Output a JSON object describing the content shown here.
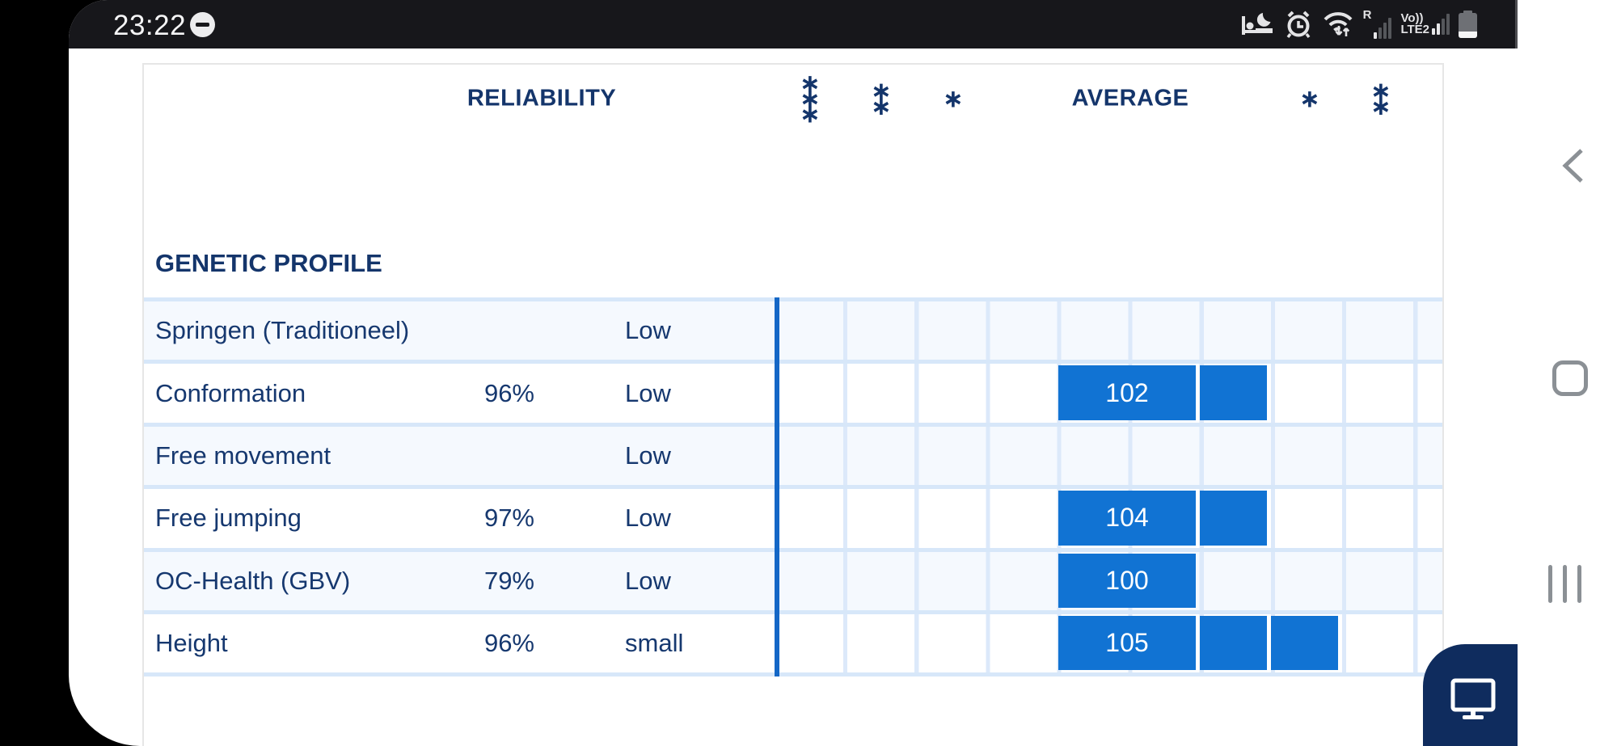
{
  "status_bar": {
    "time": "23:22",
    "dnd_icon": "do-not-disturb",
    "icons": [
      "bed-mode-icon",
      "alarm-icon",
      "wifi-updown-icon",
      "sim1-signal-icon",
      "sim2-signal-icon",
      "battery-icon"
    ],
    "sim1_label": "R",
    "sim2_label_top": "Vo))",
    "sim2_label_bottom": "LTE2"
  },
  "nav_bar": {
    "back_icon": "chevron-left",
    "home_icon": "rounded-square",
    "recents_icon": "three-bars"
  },
  "fab": {
    "icon": "desktop-monitor"
  },
  "table": {
    "header": {
      "reliability": "RELIABILITY",
      "average": "AVERAGE",
      "markers_left": [
        "∗\n∗\n∗",
        "∗\n∗",
        "∗"
      ],
      "markers_right": [
        "∗",
        "∗\n∗"
      ]
    },
    "section_title": "GENETIC PROFILE",
    "rows": [
      {
        "name": "Springen (Traditioneel)",
        "reliability": "",
        "level": "Low",
        "value": "",
        "extra_cells": 0,
        "tinted": true
      },
      {
        "name": "Conformation",
        "reliability": "96%",
        "level": "Low",
        "value": "102",
        "extra_cells": 1,
        "tinted": false
      },
      {
        "name": "Free movement",
        "reliability": "",
        "level": "Low",
        "value": "",
        "extra_cells": 0,
        "tinted": true
      },
      {
        "name": "Free jumping",
        "reliability": "97%",
        "level": "Low",
        "value": "104",
        "extra_cells": 1,
        "tinted": false
      },
      {
        "name": "OC-Health (GBV)",
        "reliability": "79%",
        "level": "Low",
        "value": "100",
        "extra_cells": 0,
        "tinted": true
      },
      {
        "name": "Height",
        "reliability": "96%",
        "level": "small",
        "value": "105",
        "extra_cells": 2,
        "tinted": false
      }
    ],
    "colors": {
      "bar_blue": "#1173d3",
      "baseline_blue": "#1467c6",
      "navy_text": "#14356b",
      "grid_line": "#dce9fa",
      "row_tint": "#f5f9fe",
      "fab_navy": "#0f2c5e"
    }
  }
}
